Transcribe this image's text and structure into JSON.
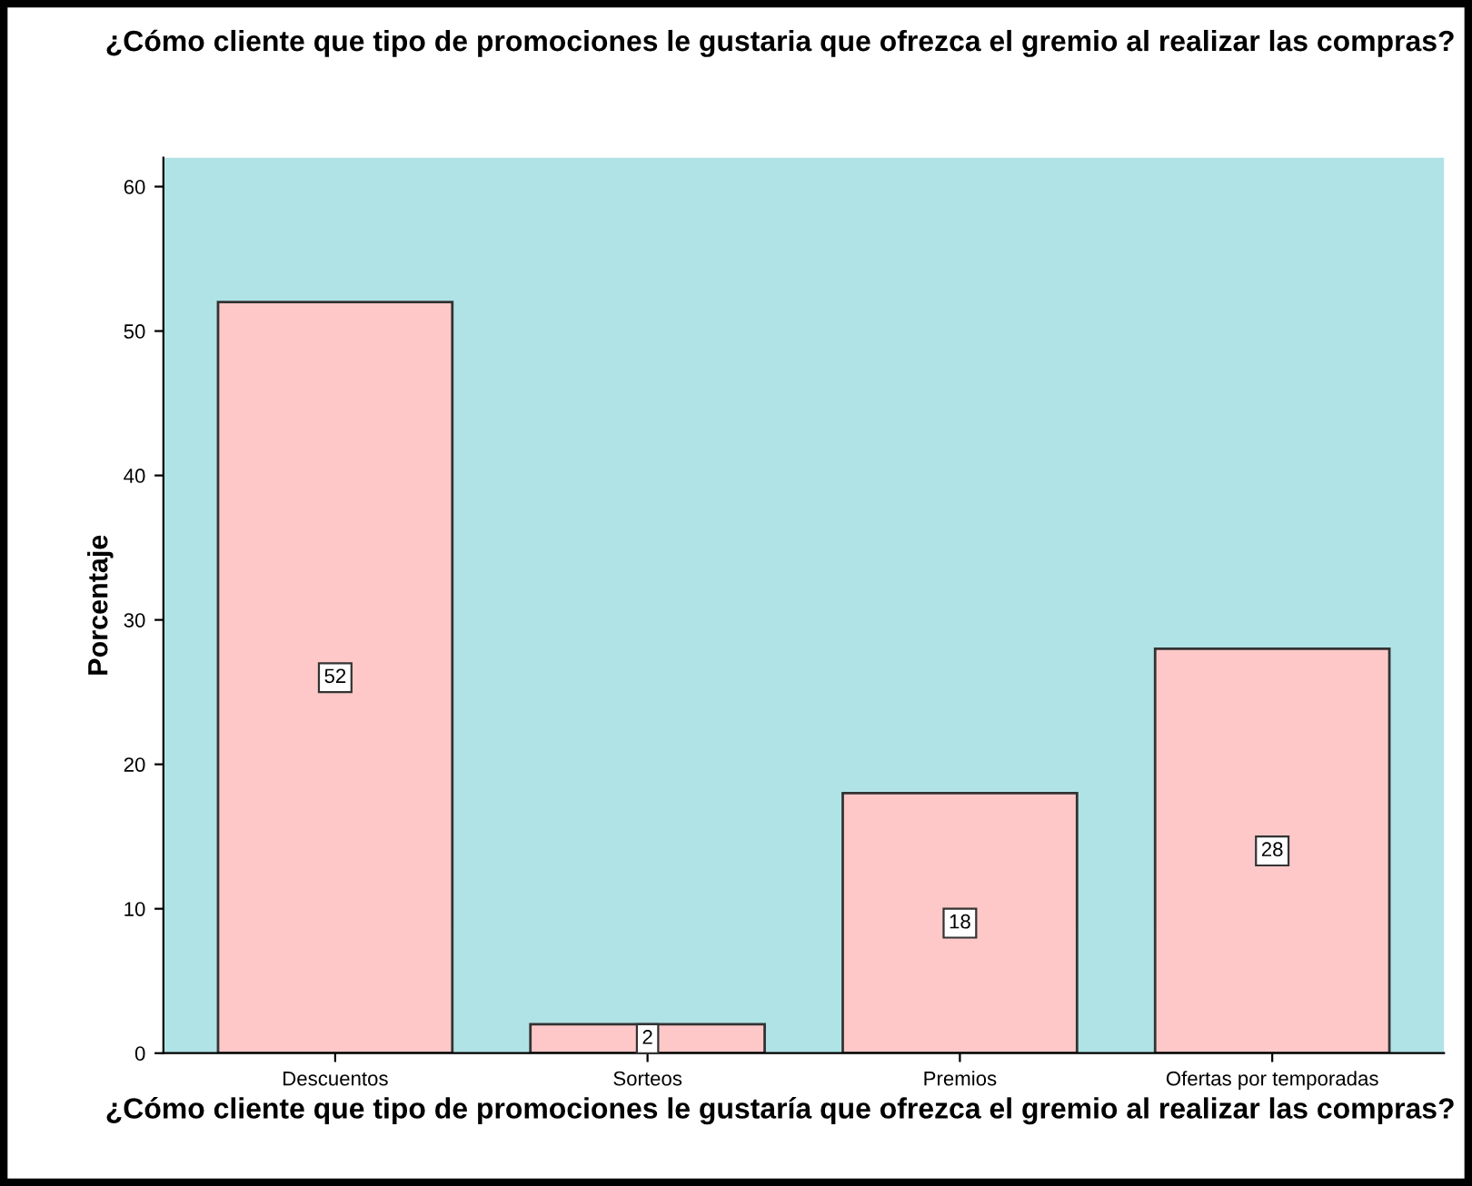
{
  "chart_data": {
    "type": "bar",
    "title": "¿Cómo cliente que tipo de promociones le gustaria que ofrezca el gremio al realizar las compras?",
    "xlabel": "¿Cómo cliente que tipo de promociones le gustaría que ofrezca el gremio al realizar las compras?",
    "ylabel": "Porcentaje",
    "categories": [
      "Descuentos",
      "Sorteos",
      "Premios",
      "Ofertas por temporadas"
    ],
    "values": [
      52,
      2,
      18,
      28
    ],
    "color": "#ffc8c8",
    "ylim": [
      0,
      62
    ],
    "yticks": [
      0,
      10,
      20,
      30,
      40,
      50,
      60
    ],
    "data_labels": true,
    "grid": false
  }
}
